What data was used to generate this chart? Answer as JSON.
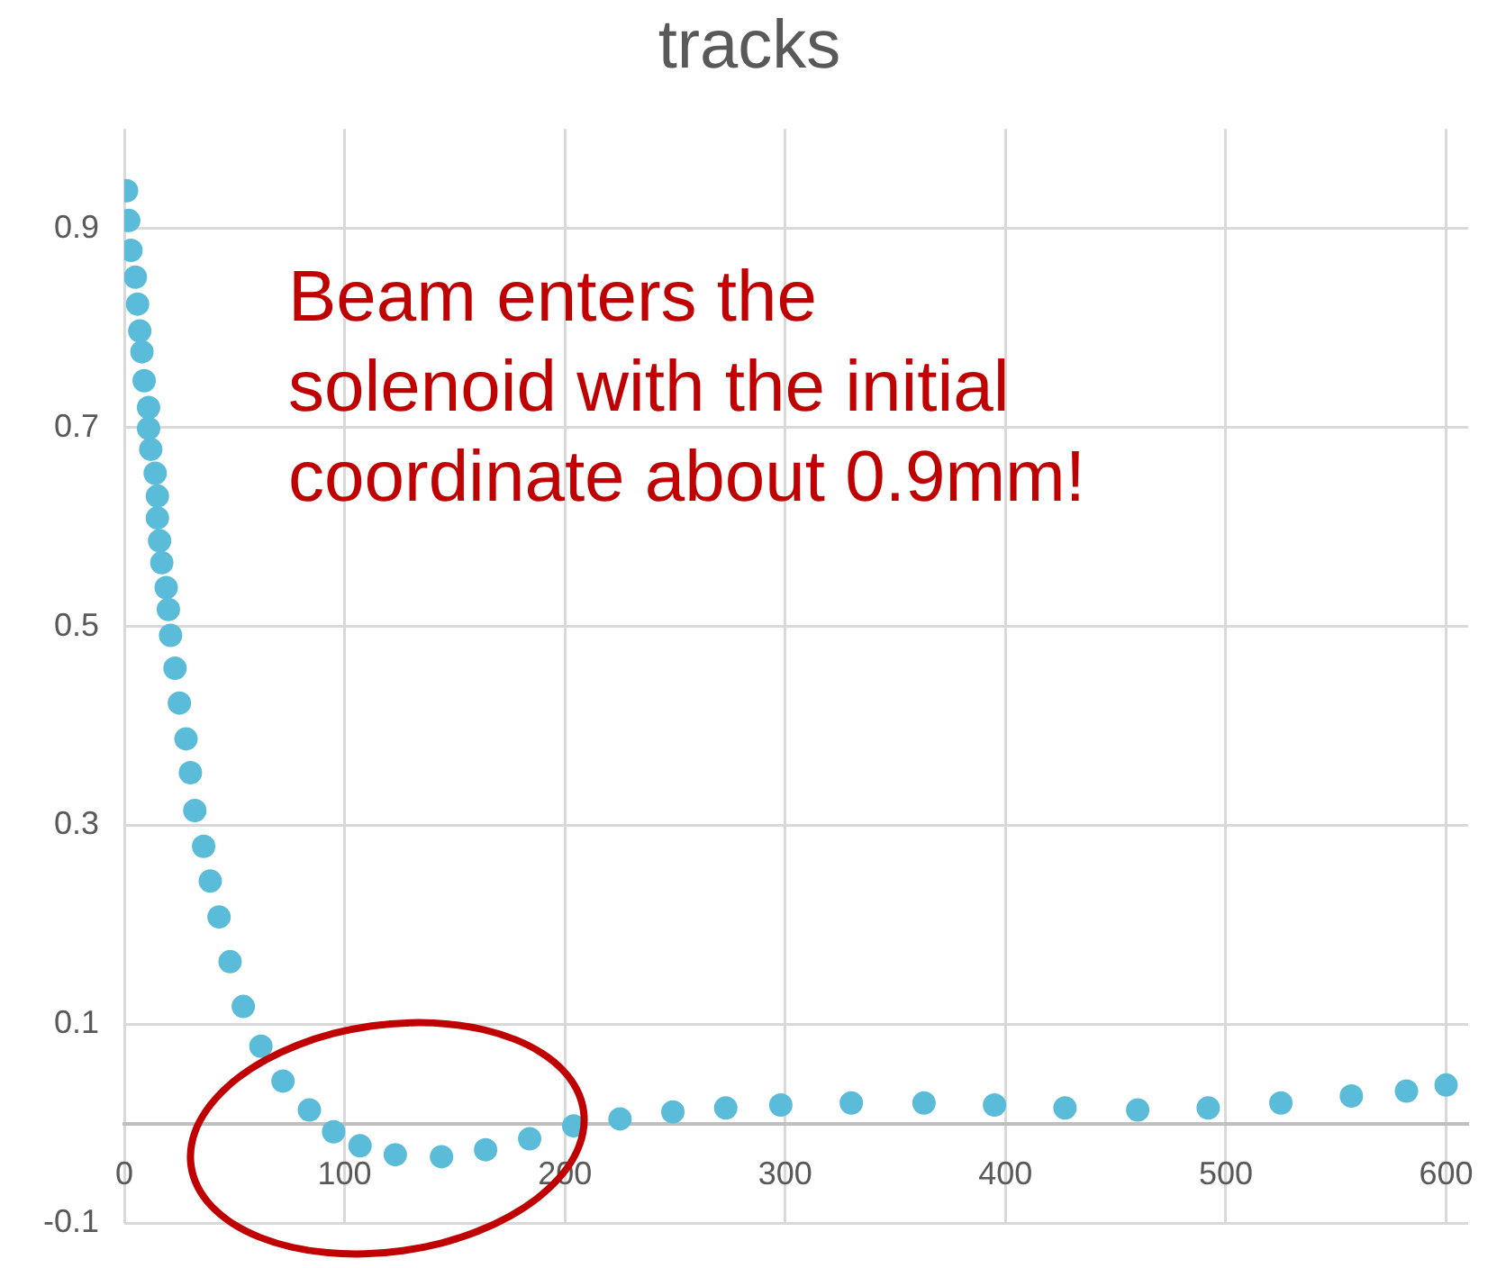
{
  "chart_data": {
    "type": "scatter",
    "title": "tracks",
    "marker": "circle",
    "grid": true,
    "legend": false,
    "xlim": [
      0,
      610
    ],
    "xticks": [
      0,
      100,
      200,
      300,
      400,
      500,
      600
    ],
    "ylim": [
      -0.1,
      1.0
    ],
    "yticks": [
      -0.1,
      0.1,
      0.3,
      0.5,
      0.7,
      0.9
    ],
    "annotations": [
      "Beam enters the\nsolenoid with the initial\ncoordinate about 0.9mm!"
    ],
    "series": [
      {
        "color": "#5bbcd9",
        "x": [
          1,
          2,
          3,
          5,
          6,
          7,
          8,
          9,
          11,
          11,
          12,
          14,
          15,
          15,
          16,
          17,
          19,
          20,
          21,
          23,
          25,
          28,
          30,
          32,
          36,
          39,
          43,
          48,
          54,
          62,
          72,
          84,
          95,
          107,
          123,
          144,
          164,
          184,
          204,
          225,
          249,
          273,
          298,
          330,
          363,
          395,
          427,
          460,
          492,
          525,
          557,
          582,
          600
        ],
        "values": [
          0.938,
          0.908,
          0.878,
          0.851,
          0.824,
          0.797,
          0.776,
          0.747,
          0.72,
          0.699,
          0.678,
          0.654,
          0.631,
          0.609,
          0.586,
          0.564,
          0.539,
          0.517,
          0.491,
          0.458,
          0.423,
          0.387,
          0.353,
          0.315,
          0.279,
          0.244,
          0.208,
          0.163,
          0.118,
          0.078,
          0.043,
          0.014,
          -0.008,
          -0.022,
          -0.031,
          -0.033,
          -0.026,
          -0.015,
          -0.002,
          0.005,
          0.012,
          0.016,
          0.019,
          0.021,
          0.021,
          0.019,
          0.016,
          0.014,
          0.016,
          0.021,
          0.028,
          0.033,
          0.039
        ]
      }
    ]
  }
}
